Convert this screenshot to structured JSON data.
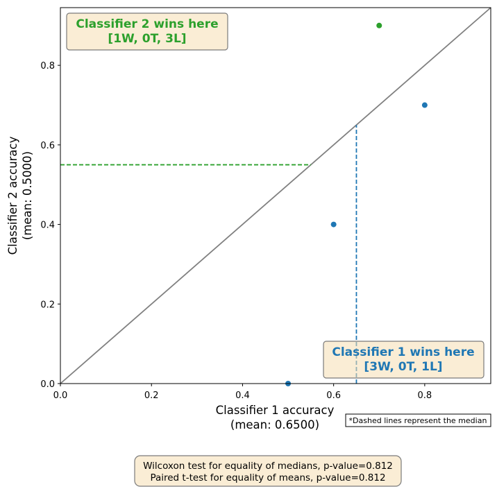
{
  "chart_data": {
    "type": "scatter",
    "xlabel_line1": "Classifier 1 accuracy",
    "xlabel_line2": "(mean: 0.6500)",
    "ylabel_line1": "Classifier 2 accuracy",
    "ylabel_line2": "(mean: 0.5000)",
    "xlim": [
      0.0,
      0.945
    ],
    "ylim": [
      0.0,
      0.945
    ],
    "xticks": [
      "0.0",
      "0.2",
      "0.4",
      "0.6",
      "0.8"
    ],
    "yticks": [
      "0.0",
      "0.2",
      "0.4",
      "0.6",
      "0.8"
    ],
    "grid": false,
    "series": [
      {
        "color": "#1f77b4",
        "points": [
          {
            "x": 0.5,
            "y": 0.0
          },
          {
            "x": 0.6,
            "y": 0.4
          },
          {
            "x": 0.8,
            "y": 0.7
          }
        ]
      },
      {
        "color": "#2ca02c",
        "points": [
          {
            "x": 0.7,
            "y": 0.9
          }
        ]
      }
    ],
    "diagonal": {
      "color": "#808080"
    },
    "median_lines": {
      "classifier1": {
        "value": 0.65,
        "color": "#1f77b4"
      },
      "classifier2": {
        "value": 0.55,
        "color": "#2ca02c"
      }
    },
    "annotations": {
      "classifier2_box": {
        "line1": "Classifier 2 wins here",
        "line2": "[1W, 0T, 3L]",
        "color": "#2ca02c",
        "placement": "top-left"
      },
      "classifier1_box": {
        "line1": "Classifier 1 wins here",
        "line2": "[3W, 0T, 1L]",
        "color": "#1f77b4",
        "placement": "bottom-right"
      },
      "median_note": "*Dashed lines represent the median",
      "stats_line1": "Wilcoxon test for equality of medians, p-value=0.812",
      "stats_line2": "Paired t-test for equality of means, p-value=0.812"
    },
    "box_fill": "#f5deb3"
  }
}
